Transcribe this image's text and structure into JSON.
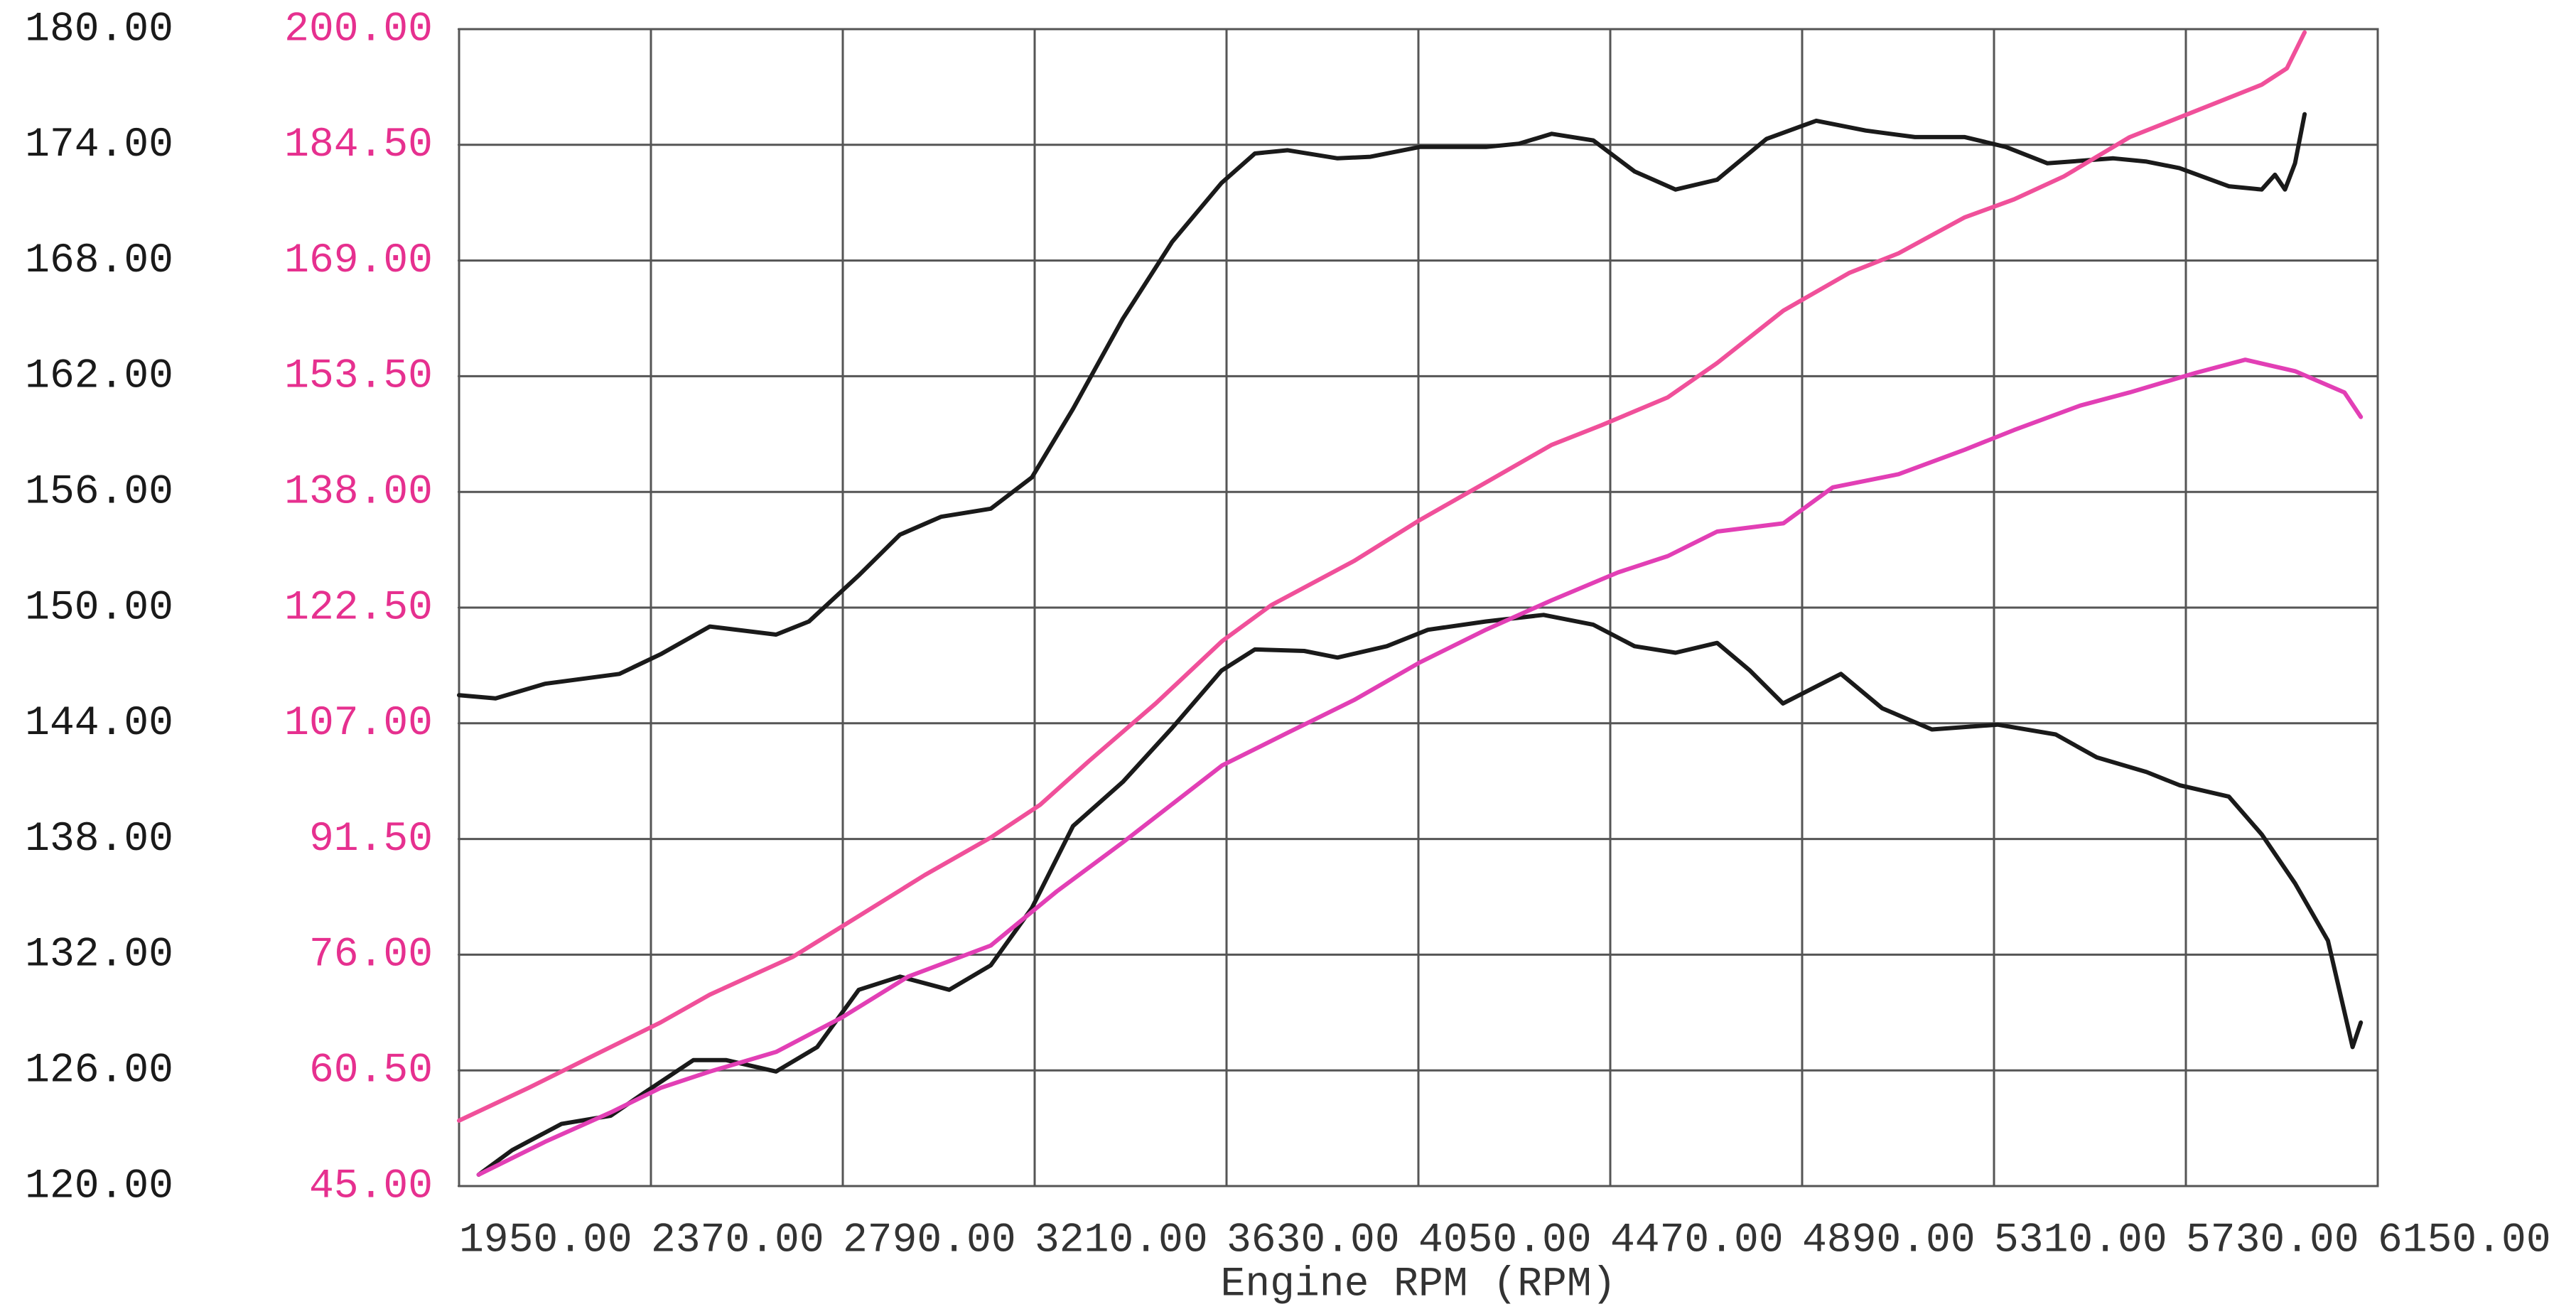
{
  "chart_data": {
    "type": "line",
    "xlabel": "Engine RPM (RPM)",
    "xlim": [
      1950,
      6150
    ],
    "xticks": [
      {
        "value": 1950,
        "label": "1950.00"
      },
      {
        "value": 2370,
        "label": "2370.00"
      },
      {
        "value": 2790,
        "label": "2790.00"
      },
      {
        "value": 3210,
        "label": "3210.00"
      },
      {
        "value": 3630,
        "label": "3630.00"
      },
      {
        "value": 4050,
        "label": "4050.00"
      },
      {
        "value": 4470,
        "label": "4470.00"
      },
      {
        "value": 4890,
        "label": "4890.00"
      },
      {
        "value": 5310,
        "label": "5310.00"
      },
      {
        "value": 5730,
        "label": "5730.00"
      },
      {
        "value": 6150,
        "label": "6150.00"
      }
    ],
    "ylim": [
      120,
      180
    ],
    "yticks": [
      {
        "value": 120,
        "label": "120.00"
      },
      {
        "value": 126,
        "label": "126.00"
      },
      {
        "value": 132,
        "label": "132.00"
      },
      {
        "value": 138,
        "label": "138.00"
      },
      {
        "value": 144,
        "label": "144.00"
      },
      {
        "value": 150,
        "label": "150.00"
      },
      {
        "value": 156,
        "label": "156.00"
      },
      {
        "value": 162,
        "label": "162.00"
      },
      {
        "value": 168,
        "label": "168.00"
      },
      {
        "value": 174,
        "label": "174.00"
      },
      {
        "value": 180,
        "label": "180.00"
      }
    ],
    "y2lim": [
      45,
      200
    ],
    "y2ticks": [
      {
        "value": 45,
        "label": "45.00"
      },
      {
        "value": 60.5,
        "label": "60.50"
      },
      {
        "value": 76,
        "label": "76.00"
      },
      {
        "value": 91.5,
        "label": "91.50"
      },
      {
        "value": 107,
        "label": "107.00"
      },
      {
        "value": 122.5,
        "label": "122.50"
      },
      {
        "value": 138,
        "label": "138.00"
      },
      {
        "value": 153.5,
        "label": "153.50"
      },
      {
        "value": 169,
        "label": "169.00"
      },
      {
        "value": 184.5,
        "label": "184.50"
      },
      {
        "value": 200,
        "label": "200.00"
      }
    ],
    "ytick_color": "#1a1a1a",
    "y2tick_color": "#e6308f",
    "grid": true,
    "series": [
      {
        "color": "#1a1a1a",
        "axis": "y",
        "x": [
          1950,
          2030,
          2138,
          2301,
          2391,
          2499,
          2644,
          2716,
          2824,
          2915,
          3005,
          3114,
          3204,
          3294,
          3403,
          3511,
          3619,
          3692,
          3764,
          3873,
          3945,
          4053,
          4198,
          4270,
          4342,
          4433,
          4523,
          4613,
          4704,
          4812,
          4921,
          5029,
          5137,
          5246,
          5336,
          5427,
          5571,
          5644,
          5716,
          5824,
          5896,
          5925,
          5947,
          5969,
          5990
        ],
        "values": [
          145.46,
          145.29,
          146.05,
          146.56,
          147.58,
          149.02,
          148.6,
          149.28,
          151.65,
          153.78,
          154.71,
          155.13,
          156.75,
          160.31,
          164.98,
          168.97,
          172.02,
          173.55,
          173.72,
          173.3,
          173.38,
          173.89,
          173.89,
          174.06,
          174.57,
          174.23,
          172.62,
          171.68,
          172.19,
          174.31,
          175.25,
          174.74,
          174.4,
          174.4,
          173.89,
          173.04,
          173.3,
          173.13,
          172.79,
          171.85,
          171.68,
          172.45,
          171.68,
          173.04,
          175.59
        ]
      },
      {
        "color": "#1a1a1a",
        "axis": "y",
        "x": [
          1993,
          2066,
          2174,
          2282,
          2355,
          2463,
          2535,
          2644,
          2734,
          2825,
          2915,
          3023,
          3114,
          3204,
          3294,
          3403,
          3511,
          3619,
          3692,
          3800,
          3873,
          3981,
          4071,
          4198,
          4324,
          4433,
          4523,
          4613,
          4704,
          4776,
          4848,
          4975,
          5065,
          5174,
          5318,
          5445,
          5535,
          5644,
          5716,
          5824,
          5896,
          5969,
          6041,
          6095,
          6113
        ],
        "values": [
          120.59,
          121.86,
          123.22,
          123.65,
          124.83,
          126.53,
          126.53,
          125.94,
          127.21,
          130.18,
          130.86,
          130.18,
          131.45,
          134.42,
          138.67,
          140.96,
          143.76,
          146.73,
          147.83,
          147.75,
          147.41,
          148.0,
          148.85,
          149.28,
          149.62,
          149.11,
          148.0,
          147.66,
          148.17,
          146.73,
          145.03,
          146.56,
          144.78,
          143.68,
          143.93,
          143.42,
          142.23,
          141.47,
          140.79,
          140.2,
          138.24,
          135.7,
          132.73,
          127.21,
          128.48
        ]
      },
      {
        "color": "#f0509a",
        "axis": "y2",
        "x": [
          1950,
          2102,
          2246,
          2391,
          2499,
          2680,
          2825,
          2969,
          3114,
          3222,
          3330,
          3475,
          3620,
          3728,
          3909,
          4053,
          4198,
          4342,
          4451,
          4596,
          4704,
          4849,
          4993,
          5101,
          5246,
          5354,
          5463,
          5607,
          5752,
          5896,
          5951,
          5990
        ],
        "values": [
          53.77,
          58.15,
          62.54,
          66.92,
          70.65,
          75.69,
          81.17,
          86.65,
          91.7,
          96.08,
          102.0,
          109.67,
          118.0,
          122.83,
          128.75,
          134.23,
          139.27,
          144.31,
          146.94,
          150.67,
          155.27,
          162.29,
          167.33,
          169.96,
          174.79,
          177.2,
          180.27,
          185.53,
          189.04,
          192.55,
          194.74,
          199.56
        ]
      },
      {
        "color": "#e23fb5",
        "axis": "y2",
        "x": [
          1993,
          2138,
          2282,
          2391,
          2499,
          2644,
          2788,
          2933,
          3114,
          3258,
          3403,
          3620,
          3764,
          3909,
          4053,
          4198,
          4342,
          4487,
          4596,
          4704,
          4849,
          4957,
          5101,
          5246,
          5354,
          5499,
          5607,
          5752,
          5860,
          5969,
          6077,
          6113
        ],
        "values": [
          46.53,
          50.92,
          54.86,
          58.15,
          60.34,
          62.97,
          67.58,
          73.06,
          77.23,
          84.46,
          91.04,
          101.34,
          105.73,
          110.11,
          115.15,
          119.54,
          123.49,
          127.21,
          129.4,
          132.69,
          133.79,
          138.61,
          140.37,
          143.66,
          146.29,
          149.57,
          151.33,
          153.96,
          155.71,
          154.18,
          151.33,
          148.04
        ]
      }
    ]
  }
}
